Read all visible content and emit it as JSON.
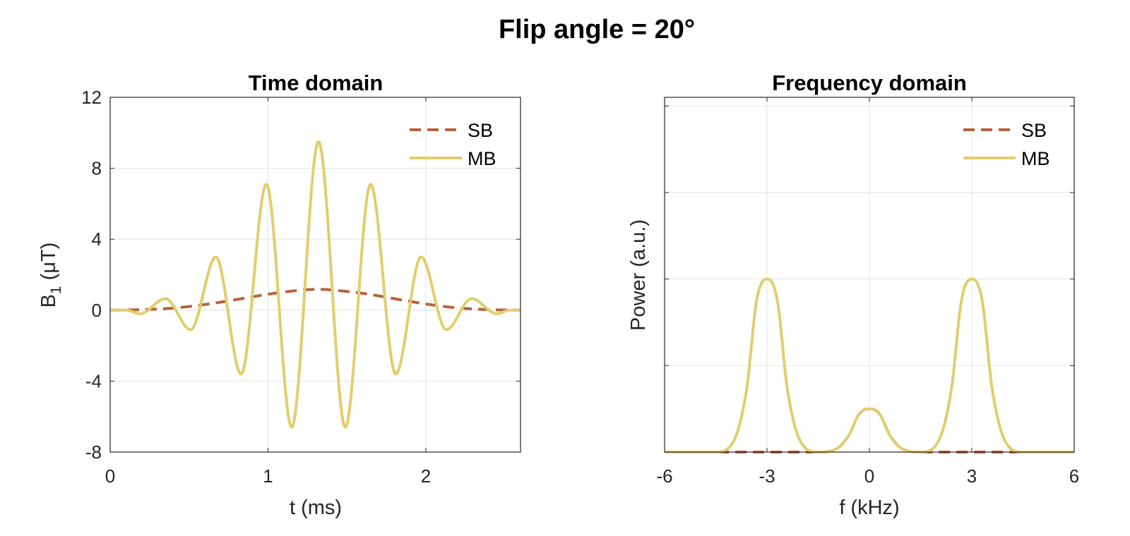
{
  "figure": {
    "title": "Flip angle = 20°"
  },
  "colors": {
    "SB": "#b5633c",
    "MB": "#e2cd6e",
    "grid": "#e3e3e3",
    "axis": "#262626"
  },
  "chart_data": [
    {
      "type": "line",
      "title": "Time domain",
      "xlabel": "t (ms)",
      "ylabel": "B₁ (μT)",
      "xlim": [
        0,
        2.6
      ],
      "ylim": [
        -8,
        12
      ],
      "xticks": [
        0,
        1,
        2
      ],
      "xtick_labels": [
        "0",
        "1",
        "2"
      ],
      "yticks": [
        -8,
        -4,
        0,
        4,
        8,
        12
      ],
      "ytick_labels": [
        "-8",
        "-4",
        "0",
        "4",
        "8",
        "12"
      ],
      "grid": true,
      "legend_position": "top-right",
      "series": [
        {
          "name": "SB",
          "style": "dashed",
          "x": [
            0,
            0.2,
            0.4,
            0.6,
            0.8,
            1.0,
            1.2,
            1.32,
            1.4,
            1.6,
            1.8,
            2.0,
            2.2,
            2.4,
            2.6
          ],
          "y": [
            0,
            0.03,
            0.12,
            0.32,
            0.6,
            0.9,
            1.12,
            1.18,
            1.14,
            0.95,
            0.65,
            0.35,
            0.13,
            0.03,
            0
          ]
        },
        {
          "name": "MB",
          "style": "solid",
          "x": [
            0,
            0.1,
            0.19,
            0.35,
            0.51,
            0.67,
            0.83,
            0.99,
            1.15,
            1.32,
            1.49,
            1.65,
            1.81,
            1.97,
            2.13,
            2.29,
            2.45,
            2.53,
            2.6
          ],
          "y": [
            0,
            0,
            -0.2,
            0.65,
            -1.1,
            3.0,
            -3.6,
            7.1,
            -6.6,
            9.5,
            -6.6,
            7.1,
            -3.6,
            3.0,
            -1.1,
            0.65,
            -0.2,
            0,
            0
          ]
        }
      ]
    },
    {
      "type": "line",
      "title": "Frequency domain",
      "xlabel": "f (kHz)",
      "ylabel": "Power (a.u.)",
      "xlim": [
        -6,
        6
      ],
      "xticks": [
        -6,
        -3,
        0,
        3,
        6
      ],
      "xtick_labels": [
        "-6",
        "-3",
        "0",
        "3",
        "6"
      ],
      "grid": true,
      "legend_position": "top-right",
      "series": [
        {
          "name": "SB",
          "style": "dashed",
          "x": [
            -6,
            -1.5,
            -1.0,
            -0.6,
            -0.3,
            0,
            0.3,
            0.6,
            1.0,
            1.5,
            6
          ],
          "y": [
            0,
            0.0,
            0.06,
            0.39,
            0.88,
            1.0,
            0.88,
            0.39,
            0.06,
            0.0,
            0
          ]
        },
        {
          "name": "MB",
          "style": "solid",
          "x": [
            -6,
            -4.5,
            -4.0,
            -3.6,
            -3.3,
            -3.0,
            -2.7,
            -2.4,
            -2.0,
            -1.5,
            -1.0,
            -0.6,
            -0.3,
            0,
            0.3,
            0.6,
            1.0,
            1.5,
            2.0,
            2.4,
            2.7,
            3.0,
            3.3,
            3.6,
            4.0,
            4.5,
            6
          ],
          "y": [
            0,
            0.0,
            0.22,
            1.44,
            3.52,
            4.0,
            3.52,
            1.44,
            0.22,
            0.0,
            0.06,
            0.39,
            0.88,
            1.0,
            0.88,
            0.39,
            0.06,
            0.0,
            0.22,
            1.44,
            3.52,
            4.0,
            3.52,
            1.44,
            0.22,
            0.0,
            0
          ]
        }
      ]
    }
  ]
}
